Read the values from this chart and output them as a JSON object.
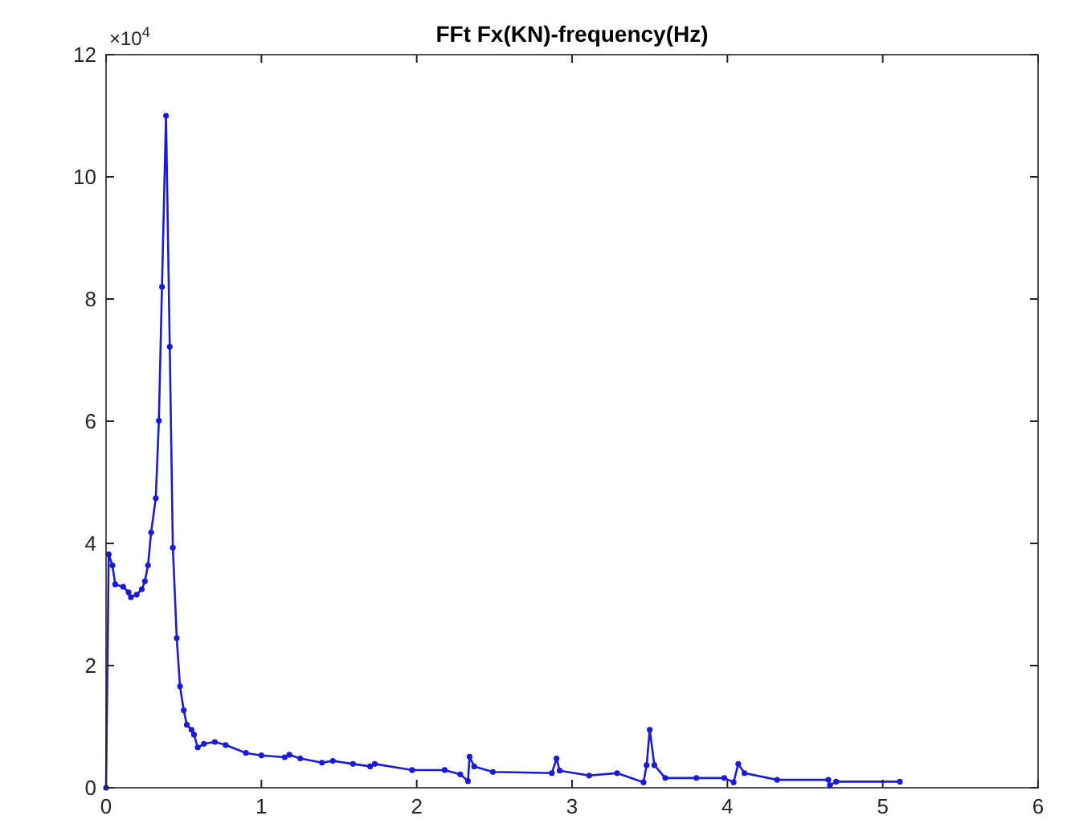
{
  "chart_data": {
    "type": "line",
    "title": "FFt Fx(KN)-frequency(Hz)",
    "annotations": [
      "×10$^{4}$"
    ],
    "x": [
      0,
      0.017,
      0.041,
      0.059,
      0.11,
      0.145,
      0.16,
      0.197,
      0.23,
      0.25,
      0.27,
      0.29,
      0.32,
      0.34,
      0.36,
      0.386,
      0.41,
      0.43,
      0.455,
      0.476,
      0.5,
      0.52,
      0.55,
      0.566,
      0.59,
      0.63,
      0.7,
      0.77,
      0.9,
      1.0,
      1.15,
      1.18,
      1.25,
      1.39,
      1.46,
      1.59,
      1.7,
      1.73,
      1.97,
      2.18,
      2.28,
      2.33,
      2.34,
      2.37,
      2.49,
      2.87,
      2.9,
      2.92,
      3.11,
      3.29,
      3.46,
      3.48,
      3.5,
      3.53,
      3.6,
      3.8,
      3.98,
      4.04,
      4.07,
      4.11,
      4.32,
      4.65,
      4.66,
      4.7,
      5.11
    ],
    "series": [
      {
        "color": "#1a1ad8",
        "values": [
          0,
          3.82,
          3.64,
          3.33,
          3.29,
          3.2,
          3.12,
          3.16,
          3.25,
          3.38,
          3.64,
          4.18,
          4.74,
          6.01,
          8.2,
          11.0,
          7.22,
          3.93,
          2.45,
          1.66,
          1.27,
          1.03,
          0.95,
          0.87,
          0.66,
          0.72,
          0.75,
          0.7,
          0.57,
          0.53,
          0.5,
          0.54,
          0.48,
          0.41,
          0.44,
          0.39,
          0.35,
          0.39,
          0.29,
          0.29,
          0.22,
          0.11,
          0.51,
          0.35,
          0.26,
          0.24,
          0.48,
          0.28,
          0.2,
          0.24,
          0.09,
          0.37,
          0.95,
          0.37,
          0.16,
          0.16,
          0.16,
          0.09,
          0.39,
          0.24,
          0.13,
          0.13,
          0.04,
          0.1,
          0.1
        ]
      }
    ],
    "xlim": [
      0,
      6
    ],
    "xticks": [
      0,
      1,
      2,
      3,
      4,
      5,
      6
    ],
    "ylim": [
      0,
      12
    ],
    "yticks": [
      0,
      2,
      4,
      6,
      8,
      10,
      12
    ],
    "grid": false,
    "marker": "circle",
    "line_style": "solid"
  }
}
